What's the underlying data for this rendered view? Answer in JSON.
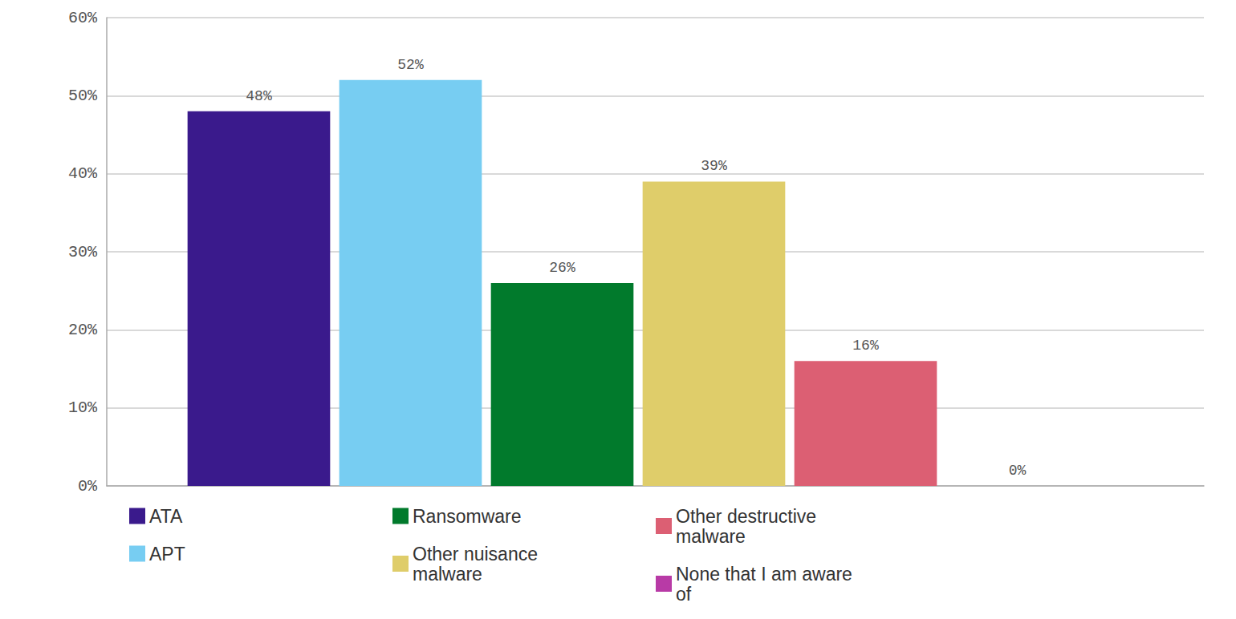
{
  "chart_data": {
    "type": "bar",
    "categories": [
      "ATA",
      "APT",
      "Ransomware",
      "Other nuisance malware",
      "Other destructive malware",
      "None that I am aware of"
    ],
    "values": [
      48,
      52,
      26,
      39,
      16,
      0
    ],
    "value_labels": [
      "48%",
      "52%",
      "26%",
      "39%",
      "16%",
      "0%"
    ],
    "colors": [
      "#3a1a8c",
      "#77cdf2",
      "#017a2c",
      "#dfcd6a",
      "#dc5f73",
      "#b83aa6"
    ],
    "ylim": [
      0,
      60
    ],
    "yticks": [
      {
        "value": 0,
        "label": "0%"
      },
      {
        "value": 10,
        "label": "10%"
      },
      {
        "value": 20,
        "label": "20%"
      },
      {
        "value": 30,
        "label": "30%"
      },
      {
        "value": 40,
        "label": "40%"
      },
      {
        "value": 50,
        "label": "50%"
      },
      {
        "value": 60,
        "label": "60%"
      }
    ],
    "grid": true,
    "data_labels": true,
    "legend": "bottom",
    "tick_labels": "y"
  }
}
